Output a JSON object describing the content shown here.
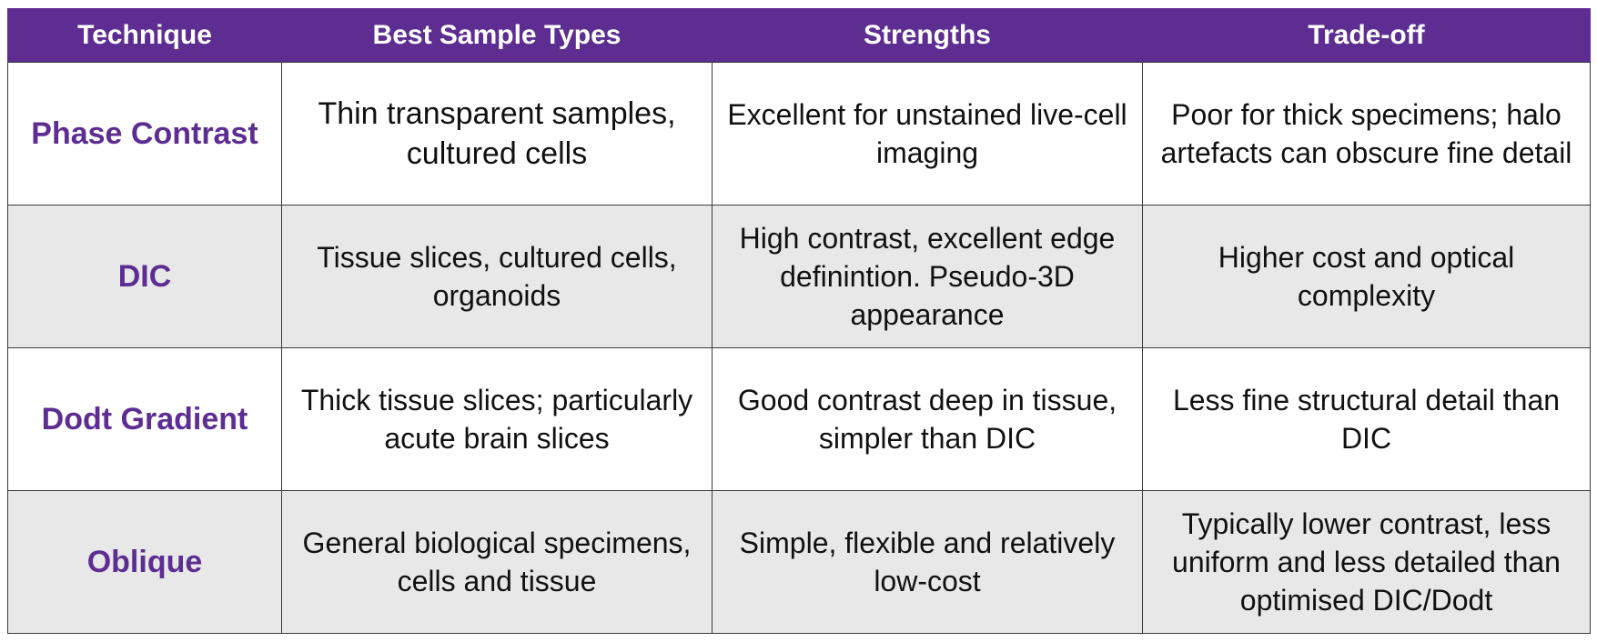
{
  "table": {
    "headers": [
      "Technique",
      "Best Sample Types",
      "Strengths",
      "Trade-off"
    ],
    "rows": [
      {
        "technique": "Phase Contrast",
        "samples": "Thin transparent samples, cultured cells",
        "strengths": "Excellent for unstained live-cell imaging",
        "tradeoff": "Poor for thick specimens; halo artefacts can obscure fine detail"
      },
      {
        "technique": "DIC",
        "samples": "Tissue slices, cultured cells, organoids",
        "strengths": "High contrast, excellent edge definintion. Pseudo-3D appearance",
        "tradeoff": "Higher cost and optical complexity"
      },
      {
        "technique": "Dodt Gradient",
        "samples": "Thick tissue slices; particularly acute brain slices",
        "strengths": "Good contrast deep in tissue, simpler than DIC",
        "tradeoff": "Less fine structural detail than DIC"
      },
      {
        "technique": "Oblique",
        "samples": "General biological specimens, cells and tissue",
        "strengths": "Simple, flexible and relatively low-cost",
        "tradeoff": "Typically lower contrast, less uniform and less detailed than optimised DIC/Dodt"
      }
    ]
  },
  "colors": {
    "header_bg": "#5d2d91",
    "header_text": "#ffffff",
    "technique_text": "#5d2d91",
    "alt_row_bg": "#e8e8e8"
  }
}
